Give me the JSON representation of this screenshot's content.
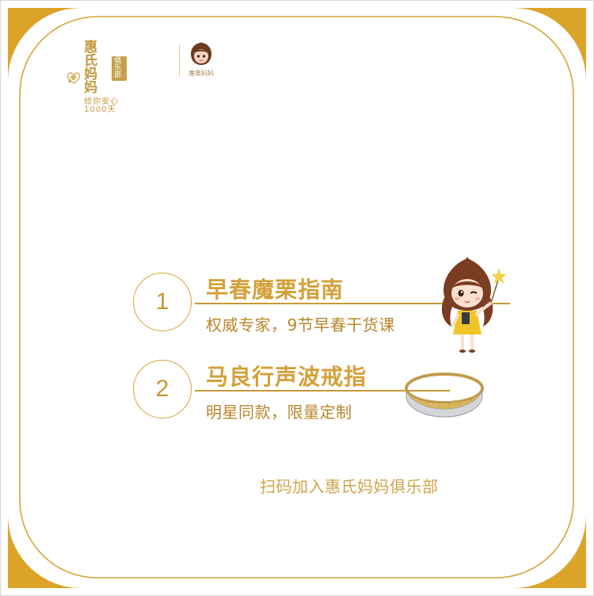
{
  "colors": {
    "gold": "#d3a13a",
    "frame_gold": "#dba429",
    "text_gold": "#b8862a"
  },
  "logo": {
    "brand_name": "惠氏妈妈",
    "club_badge": "俱乐部",
    "tagline": "给你安心1000天",
    "sub_brand_text": "魔栗妈妈",
    "mark_icon": "hearts-logo-icon",
    "mascot_icon": "chestnut-girl-icon"
  },
  "items": [
    {
      "number": "1",
      "title": "早春魔栗指南",
      "subtitle": "权威专家，9节早春干货课"
    },
    {
      "number": "2",
      "title": "马良行声波戒指",
      "subtitle": "明星同款，限量定制"
    }
  ],
  "footer": {
    "text": "扫码加入惠氏妈妈俱乐部"
  }
}
